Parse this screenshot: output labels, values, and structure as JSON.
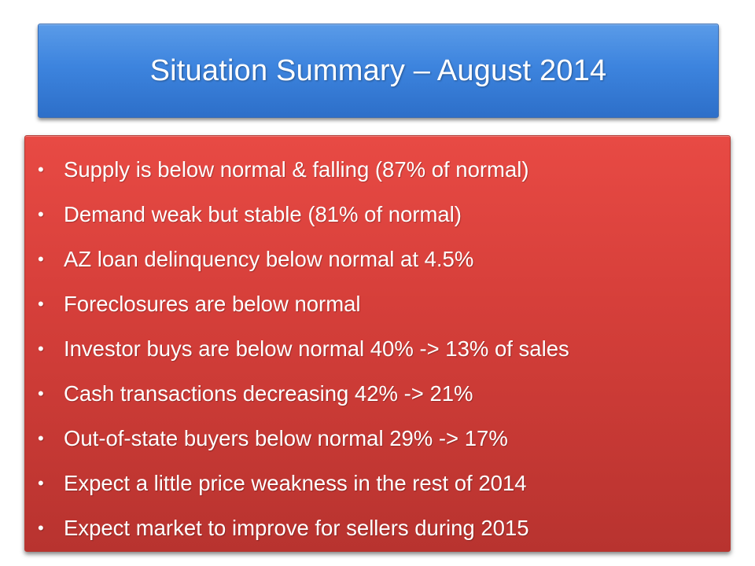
{
  "slide": {
    "title": "Situation Summary – August 2014",
    "bullets": [
      "Supply is below normal & falling (87% of normal)",
      "Demand weak but stable (81% of normal)",
      "AZ loan delinquency below normal at 4.5%",
      "Foreclosures are below normal",
      "Investor buys are below normal 40% -> 13% of sales",
      "Cash transactions decreasing 42% -> 21%",
      "Out-of-state buyers below normal 29% -> 17%",
      "Expect a little price weakness in the rest of 2014",
      "Expect market to improve for sellers during 2015"
    ],
    "bullet_symbol": "•"
  },
  "colors": {
    "title_box": "#3d84de",
    "body_box": "#d63f3a",
    "text": "#ffffff"
  }
}
